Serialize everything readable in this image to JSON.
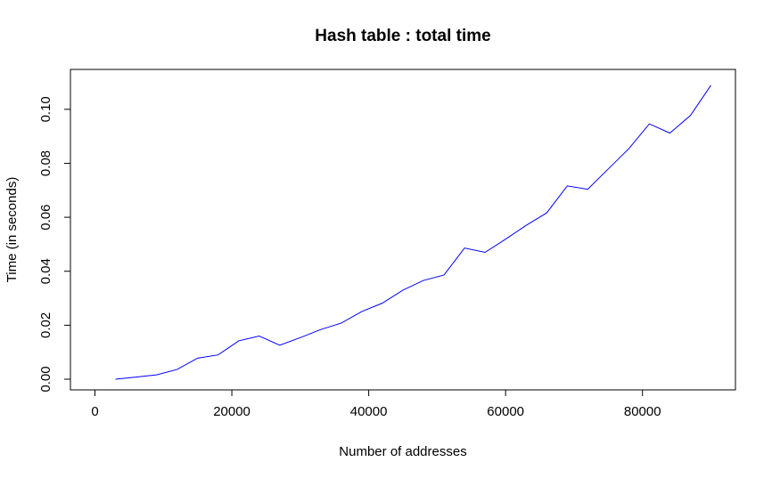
{
  "chart_data": {
    "type": "line",
    "title": "Hash table : total time",
    "xlabel": "Number of addresses",
    "ylabel": "Time (in seconds)",
    "xlim": [
      0,
      90000
    ],
    "ylim": [
      0,
      0.11
    ],
    "x_ticks": [
      0,
      20000,
      40000,
      60000,
      80000
    ],
    "x_tick_labels": [
      "0",
      "20000",
      "40000",
      "60000",
      "80000"
    ],
    "y_ticks": [
      0,
      0.02,
      0.04,
      0.06,
      0.08,
      0.1
    ],
    "y_tick_labels": [
      "0.00",
      "0.02",
      "0.04",
      "0.06",
      "0.08",
      "0.10"
    ],
    "grid": false,
    "line_color": "#0000ff",
    "series": [
      {
        "x": [
          3000,
          6000,
          9000,
          12000,
          15000,
          18000,
          21000,
          24000,
          27000,
          30000,
          33000,
          36000,
          39000,
          42000,
          45000,
          48000,
          51000,
          54000,
          57000,
          60000,
          63000,
          66000,
          69000,
          72000,
          75000,
          78000,
          81000,
          84000,
          87000,
          90000
        ],
        "values": [
          0.0,
          0.0008,
          0.0016,
          0.0036,
          0.0078,
          0.009,
          0.0142,
          0.016,
          0.0126,
          0.0154,
          0.0184,
          0.0208,
          0.0251,
          0.0282,
          0.033,
          0.0366,
          0.0386,
          0.0486,
          0.047,
          0.0519,
          0.057,
          0.0616,
          0.0716,
          0.0704,
          0.0779,
          0.0854,
          0.0946,
          0.0912,
          0.0977,
          0.1089
        ]
      }
    ]
  }
}
